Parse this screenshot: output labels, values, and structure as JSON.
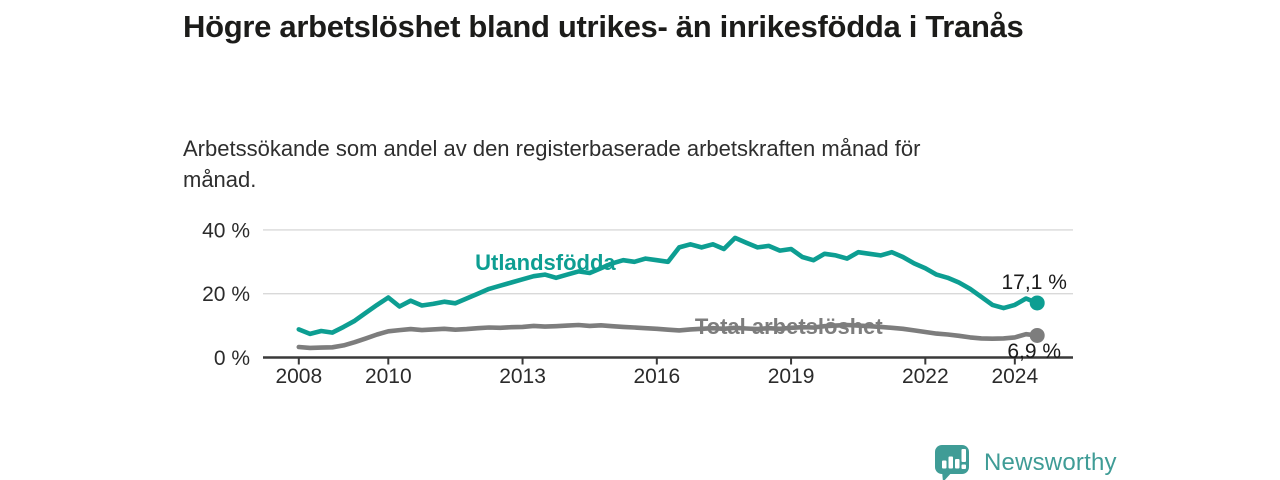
{
  "title": "Högre arbetslöshet bland utrikes- än inrikesfödda i Tranås",
  "subtitle": "Arbetssökande som andel av den registerbaserade arbetskraften månad för månad.",
  "colors": {
    "accent_teal": "#0D9E92",
    "line_gray": "#7D7D7D",
    "axis": "#3a3a3a",
    "grid": "#d9d9d9",
    "end_label_text": "#1a1a1a",
    "logo_teal": "#3F9C96"
  },
  "chart_data": {
    "type": "line",
    "title": "Högre arbetslöshet bland utrikes- än inrikesfödda i Tranås",
    "subtitle": "Arbetssökande som andel av den registerbaserade arbetskraften månad för månad.",
    "unit": "%",
    "grid": "horizontal",
    "legend_position": "inline-labels",
    "xlim": [
      2007.2,
      2025.3
    ],
    "ylim": [
      0,
      42
    ],
    "xticks": [
      2008,
      2010,
      2013,
      2016,
      2019,
      2022,
      2024
    ],
    "xtick_labels": [
      "2008",
      "2010",
      "2013",
      "2016",
      "2019",
      "2022",
      "2024"
    ],
    "yticks": [
      0,
      20,
      40
    ],
    "ytick_labels": [
      "0 %",
      "20 %",
      "40 %"
    ],
    "x": [
      2008,
      2008.25,
      2008.5,
      2008.75,
      2009,
      2009.25,
      2009.5,
      2009.75,
      2010,
      2010.25,
      2010.5,
      2010.75,
      2011,
      2011.25,
      2011.5,
      2011.75,
      2012,
      2012.25,
      2012.5,
      2012.75,
      2013,
      2013.25,
      2013.5,
      2013.75,
      2014,
      2014.25,
      2014.5,
      2014.75,
      2015,
      2015.25,
      2015.5,
      2015.75,
      2016,
      2016.25,
      2016.5,
      2016.75,
      2017,
      2017.25,
      2017.5,
      2017.75,
      2018,
      2018.25,
      2018.5,
      2018.75,
      2019,
      2019.25,
      2019.5,
      2019.75,
      2020,
      2020.25,
      2020.5,
      2020.75,
      2021,
      2021.25,
      2021.5,
      2021.75,
      2022,
      2022.25,
      2022.5,
      2022.75,
      2023,
      2023.25,
      2023.5,
      2023.75,
      2024,
      2024.25,
      2024.5
    ],
    "series": [
      {
        "name": "Utlandsfödda",
        "color": "#0D9E92",
        "end_label": "17,1 %",
        "end_value": 17.1,
        "values": [
          8.8,
          7.4,
          8.3,
          7.8,
          9.6,
          11.5,
          14.0,
          16.5,
          18.8,
          16.0,
          17.8,
          16.3,
          16.8,
          17.5,
          17.0,
          18.5,
          20.0,
          21.5,
          22.5,
          23.5,
          24.5,
          25.5,
          26.0,
          25.0,
          26.0,
          27.0,
          26.5,
          28.0,
          29.5,
          30.5,
          30.0,
          31.0,
          30.5,
          30.0,
          34.5,
          35.5,
          34.5,
          35.5,
          34.0,
          37.5,
          36.0,
          34.5,
          35.0,
          33.5,
          34.0,
          31.5,
          30.5,
          32.5,
          32.0,
          31.0,
          33.0,
          32.5,
          32.0,
          33.0,
          31.5,
          29.5,
          28.0,
          26.0,
          25.0,
          23.5,
          21.5,
          19.0,
          16.5,
          15.5,
          16.5,
          18.5,
          17.1
        ]
      },
      {
        "name": "Total arbetslöshet",
        "color": "#7D7D7D",
        "end_label": "6,9 %",
        "end_value": 6.9,
        "values": [
          3.3,
          3.0,
          3.1,
          3.2,
          3.8,
          4.8,
          6.0,
          7.2,
          8.2,
          8.6,
          8.9,
          8.6,
          8.8,
          9.0,
          8.7,
          8.9,
          9.2,
          9.4,
          9.3,
          9.5,
          9.6,
          9.9,
          9.7,
          9.8,
          10.0,
          10.2,
          9.9,
          10.1,
          9.8,
          9.6,
          9.4,
          9.2,
          9.0,
          8.7,
          8.5,
          8.8,
          9.0,
          9.2,
          9.0,
          9.3,
          9.1,
          8.9,
          9.2,
          9.0,
          9.3,
          9.5,
          9.4,
          9.8,
          10.0,
          10.2,
          10.0,
          9.8,
          9.6,
          9.3,
          9.0,
          8.5,
          8.0,
          7.5,
          7.2,
          6.8,
          6.3,
          6.0,
          5.9,
          6.0,
          6.3,
          7.3,
          6.9
        ]
      }
    ],
    "series_labels": [
      {
        "text": "Utlandsfödda",
        "x": 2011.94,
        "y": 27.4,
        "color": "#0D9E92"
      },
      {
        "text": "Total arbetslöshet",
        "x": 2016.85,
        "y": 7.4,
        "color": "#7D7D7D"
      }
    ]
  },
  "footer": {
    "brand": "Newsworthy",
    "logo_icon": "bar-chart-speech-bubble-icon"
  }
}
